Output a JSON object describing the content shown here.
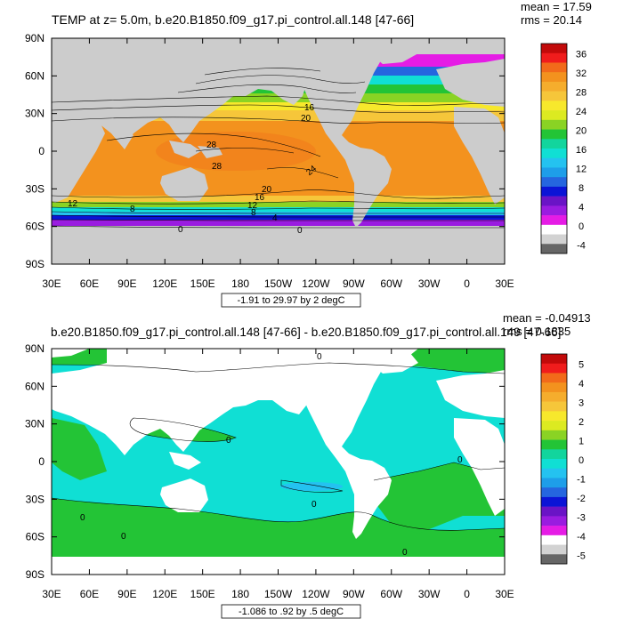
{
  "chart_data": [
    {
      "type": "heatmap",
      "title": "TEMP at z=   5.0m, b.e20.B1850.f09_g17.pi_control.all.148 [47-66]",
      "stats": {
        "mean": "mean = 17.59",
        "rms": "rms = 20.14"
      },
      "range_note": "-1.91 to 29.97 by 2 degC",
      "xlim": [
        30,
        390
      ],
      "ylim": [
        -90,
        90
      ],
      "x_ticks": [
        "30E",
        "60E",
        "90E",
        "120E",
        "150E",
        "180",
        "150W",
        "120W",
        "90W",
        "60W",
        "30W",
        "0",
        "30E"
      ],
      "y_ticks": [
        "90N",
        "60N",
        "30N",
        "0",
        "30S",
        "60S",
        "90S"
      ],
      "colorbar": {
        "levels": [
          "36",
          "32",
          "28",
          "24",
          "20",
          "16",
          "12",
          "8",
          "4",
          "0",
          "-4"
        ],
        "colors": [
          "#c20a0a",
          "#f01c1c",
          "#f26a1a",
          "#f3921e",
          "#f5ad2d",
          "#f6c63a",
          "#f7e82c",
          "#dcea21",
          "#8ad324",
          "#23c436",
          "#12d59d",
          "#10dfd4",
          "#24c2f0",
          "#1e9ee9",
          "#2566df",
          "#0b14d6",
          "#6a14c6",
          "#9a1ce0",
          "#e51ce5",
          "#ffffff",
          "#d2d2d2",
          "#666666"
        ]
      },
      "contour_labels": [
        "16",
        "20",
        "28",
        "28",
        "24",
        "20",
        "16",
        "12",
        "12",
        "8",
        "8",
        "4",
        "0",
        "0"
      ],
      "land_color": "#cccccc"
    },
    {
      "type": "heatmap",
      "title": "b.e20.B1850.f09_g17.pi_control.all.148 [47-66] - b.e20.B1850.f09_g17.pi_control.all.149 [47-66]",
      "stats": {
        "mean": "mean = -0.04913",
        "rms": "rms = 0.1835"
      },
      "range_note": "-1.086 to .92 by .5 degC",
      "xlim": [
        30,
        390
      ],
      "ylim": [
        -90,
        90
      ],
      "x_ticks": [
        "30E",
        "60E",
        "90E",
        "120E",
        "150E",
        "180",
        "150W",
        "120W",
        "90W",
        "60W",
        "30W",
        "0",
        "30E"
      ],
      "y_ticks": [
        "90N",
        "60N",
        "30N",
        "0",
        "30S",
        "60S",
        "90S"
      ],
      "colorbar": {
        "levels": [
          "5",
          "4",
          "3",
          "2",
          "1",
          "0",
          "-1",
          "-2",
          "-3",
          "-4",
          "-5"
        ],
        "colors": [
          "#c20a0a",
          "#f01c1c",
          "#f26a1a",
          "#f3921e",
          "#f5ad2d",
          "#f6c63a",
          "#f7e82c",
          "#dcea21",
          "#8ad324",
          "#23c436",
          "#12d59d",
          "#10dfd4",
          "#24c2f0",
          "#1e9ee9",
          "#2566df",
          "#0b14d6",
          "#6a14c6",
          "#9a1ce0",
          "#e51ce5",
          "#ffffff",
          "#d2d2d2",
          "#666666"
        ]
      },
      "contour_labels": [
        "0",
        "0",
        "0",
        "0",
        "0",
        "0",
        "0"
      ],
      "land_color": "#ffffff"
    }
  ]
}
